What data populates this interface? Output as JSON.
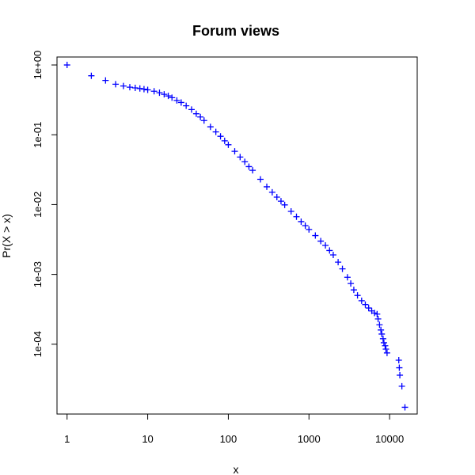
{
  "chart_data": {
    "type": "scatter",
    "title": "Forum views",
    "xlabel": "x",
    "ylabel": "Pr(X > x)",
    "xscale": "log",
    "yscale": "log",
    "xlim": [
      0.75,
      22000
    ],
    "ylim": [
      1e-05,
      1.3
    ],
    "x_ticks": [
      1,
      10,
      100,
      1000,
      10000
    ],
    "x_tick_labels": [
      "1",
      "10",
      "100",
      "1000",
      "10000"
    ],
    "y_ticks": [
      1,
      0.1,
      0.01,
      0.001,
      0.0001
    ],
    "y_tick_labels": [
      "1e+00",
      "1e-01",
      "1e-02",
      "1e-03",
      "1e-04"
    ],
    "grid": false,
    "legend": "none",
    "marker": "plus",
    "color": "#0000ff",
    "series": [
      {
        "x": [
          1,
          2,
          3,
          4,
          5,
          6,
          7,
          8,
          9,
          10,
          12,
          14,
          16,
          18,
          20,
          23,
          26,
          30,
          35,
          40,
          45,
          50,
          60,
          70,
          80,
          90,
          100,
          120,
          140,
          160,
          180,
          200,
          250,
          300,
          350,
          400,
          450,
          500,
          600,
          700,
          800,
          900,
          1000,
          1200,
          1400,
          1600,
          1800,
          2000,
          2300,
          2600,
          3000,
          3300,
          3600,
          4000,
          4500,
          5000,
          5500,
          6000,
          6500,
          7000,
          7200,
          7500,
          7800,
          8000,
          8300,
          8500,
          8800,
          9000,
          9300,
          13000,
          13200,
          13400,
          14200,
          15500
        ],
        "y": [
          1.0,
          0.7,
          0.6,
          0.53,
          0.5,
          0.48,
          0.47,
          0.46,
          0.45,
          0.44,
          0.42,
          0.4,
          0.38,
          0.36,
          0.34,
          0.31,
          0.29,
          0.26,
          0.23,
          0.2,
          0.18,
          0.16,
          0.13,
          0.11,
          0.095,
          0.082,
          0.072,
          0.058,
          0.048,
          0.041,
          0.035,
          0.031,
          0.023,
          0.018,
          0.015,
          0.0128,
          0.0112,
          0.0099,
          0.008,
          0.0067,
          0.0057,
          0.005,
          0.0044,
          0.0036,
          0.003,
          0.0026,
          0.0022,
          0.0019,
          0.0015,
          0.0012,
          0.00091,
          0.00074,
          0.0006,
          0.0005,
          0.00042,
          0.00037,
          0.00033,
          0.0003,
          0.00028,
          0.00027,
          0.00023,
          0.00019,
          0.00016,
          0.00014,
          0.00012,
          0.000105,
          9.5e-05,
          8.5e-05,
          7.5e-05,
          5.9e-05,
          4.6e-05,
          3.6e-05,
          2.5e-05,
          1.25e-05
        ]
      }
    ]
  }
}
